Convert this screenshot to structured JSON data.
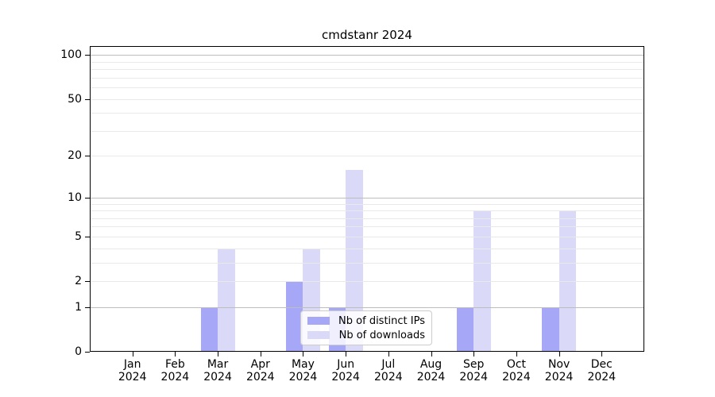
{
  "figure": {
    "title": "cmdstanr 2024"
  },
  "chart_data": {
    "type": "bar",
    "title": "cmdstanr 2024",
    "categories": [
      "Jan",
      "Feb",
      "Mar",
      "Apr",
      "May",
      "Jun",
      "Jul",
      "Aug",
      "Sep",
      "Oct",
      "Nov",
      "Dec"
    ],
    "year_label": "2024",
    "series": [
      {
        "name": "Nb of distinct IPs",
        "color": "#a7a7f7",
        "values": [
          0,
          0,
          1,
          0,
          2,
          1,
          0,
          0,
          1,
          0,
          1,
          0
        ]
      },
      {
        "name": "Nb of downloads",
        "color": "#dadaf8",
        "values": [
          0,
          0,
          4,
          0,
          4,
          16,
          0,
          0,
          8,
          0,
          8,
          0
        ]
      }
    ],
    "xlabel": "",
    "ylabel": "",
    "y_scale": "log1p",
    "ylim": [
      0,
      115
    ],
    "y_ticks": [
      0,
      1,
      2,
      5,
      10,
      20,
      50,
      100
    ],
    "y_minor_grid": [
      2,
      3,
      4,
      5,
      6,
      7,
      8,
      9,
      20,
      30,
      40,
      50,
      60,
      70,
      80,
      90
    ],
    "y_major_grid": [
      1,
      10,
      100
    ],
    "grid": true,
    "legend": {
      "position": "bottom-center",
      "entries": [
        "Nb of distinct IPs",
        "Nb of downloads"
      ]
    }
  },
  "colors": {
    "bar_dark": "#a7a7f7",
    "bar_light": "#dadaf8",
    "major_grid": "#bdbdbd",
    "minor_grid": "#e9e9e9",
    "axis": "#000000",
    "text": "#000000",
    "legend_border": "#cccccc"
  }
}
